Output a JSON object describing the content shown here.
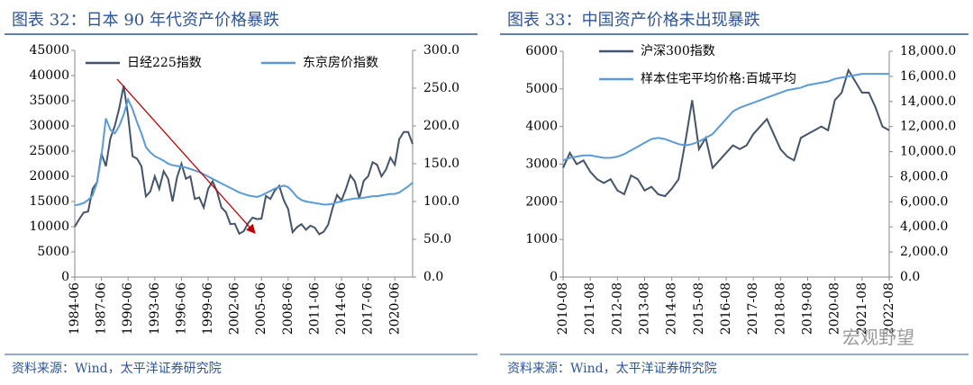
{
  "chart_data": [
    {
      "type": "line",
      "title": "图表 32：日本 90 年代资产价格暴跌",
      "source": "资料来源：Wind，太平洋证券研究院",
      "categories": [
        "1984-06",
        null,
        null,
        null,
        null,
        null,
        "1987-06",
        null,
        null,
        null,
        null,
        null,
        "1990-06",
        null,
        null,
        null,
        null,
        null,
        "1993-06",
        null,
        null,
        null,
        null,
        null,
        "1996-06",
        null,
        null,
        null,
        null,
        null,
        "1999-06",
        null,
        null,
        null,
        null,
        null,
        "2002-06",
        null,
        null,
        null,
        null,
        null,
        "2005-06",
        null,
        null,
        null,
        null,
        null,
        "2008-06",
        null,
        null,
        null,
        null,
        null,
        "2011-06",
        null,
        null,
        null,
        null,
        null,
        "2014-06",
        null,
        null,
        null,
        null,
        null,
        "2017-06",
        null,
        null,
        null,
        null,
        null,
        "2020-06",
        null,
        null,
        null,
        null
      ],
      "series": [
        {
          "name": "日经225指数",
          "color": "#44546a",
          "axis": "y",
          "values": [
            10000,
            11500,
            12800,
            13000,
            17500,
            18800,
            24500,
            22000,
            27500,
            30000,
            33500,
            38000,
            32000,
            24000,
            23500,
            22000,
            16000,
            17000,
            20000,
            17500,
            21000,
            19500,
            15000,
            19800,
            22500,
            19500,
            20000,
            15500,
            15800,
            13800,
            17500,
            19000,
            17000,
            13800,
            12900,
            10500,
            10600,
            8600,
            9100,
            10700,
            11800,
            11500,
            11600,
            16100,
            15500,
            17200,
            18100,
            15300,
            13500,
            8900,
            9900,
            10500,
            9400,
            10200,
            9800,
            8500,
            9000,
            10400,
            13700,
            16300,
            15200,
            17500,
            20200,
            19000,
            15600,
            19100,
            20000,
            22800,
            22300,
            20000,
            21300,
            23700,
            22300,
            27400,
            28800,
            28800,
            26400
          ]
        },
        {
          "name": "东京房价指数",
          "color": "#5b9bd5",
          "axis": "y2",
          "values": [
            95,
            96,
            98,
            102,
            108,
            125,
            160,
            210,
            195,
            190,
            200,
            215,
            235,
            222,
            205,
            190,
            172,
            165,
            160,
            157,
            154,
            150,
            148,
            147,
            146,
            145,
            143,
            141,
            139,
            136,
            133,
            130,
            127,
            124,
            121,
            118,
            115,
            112,
            110,
            108,
            107,
            106,
            108,
            111,
            114,
            117,
            119,
            121,
            119,
            113,
            106,
            102,
            100,
            99,
            98,
            97,
            96,
            96,
            97,
            99,
            100,
            102,
            103,
            104,
            104,
            105,
            106,
            107,
            107,
            108,
            109,
            110,
            110,
            112,
            116,
            120,
            125
          ]
        }
      ],
      "ylim": [
        0,
        45000
      ],
      "yticks": [
        0,
        5000,
        10000,
        15000,
        20000,
        25000,
        30000,
        35000,
        40000,
        45000
      ],
      "y2lim": [
        0,
        300
      ],
      "y2ticks": [
        {
          "value": 0,
          "label": "0.0"
        },
        {
          "value": 50,
          "label": "50.0"
        },
        {
          "value": 100,
          "label": "100.0"
        },
        {
          "value": 150,
          "label": "150.0"
        },
        {
          "value": 200,
          "label": "200.0"
        },
        {
          "value": 250,
          "label": "250.0"
        },
        {
          "value": 300,
          "label": "300.0"
        }
      ],
      "legend": "upper left"
    },
    {
      "type": "line",
      "title": "图表 33：中国资产价格未出现暴跌",
      "source": "资料来源：Wind，太平洋证券研究院",
      "categories": [
        "2010-08",
        null,
        null,
        null,
        "2011-08",
        null,
        null,
        null,
        "2012-08",
        null,
        null,
        null,
        "2013-08",
        null,
        null,
        null,
        "2014-08",
        null,
        null,
        null,
        "2015-08",
        null,
        null,
        null,
        "2016-08",
        null,
        null,
        null,
        "2017-08",
        null,
        null,
        null,
        "2018-08",
        null,
        null,
        null,
        "2019-08",
        null,
        null,
        null,
        "2020-08",
        null,
        null,
        null,
        "2021-08",
        null,
        null,
        null,
        "2022-08"
      ],
      "series": [
        {
          "name": "沪深300指数",
          "color": "#44546a",
          "axis": "y",
          "values": [
            2900,
            3300,
            3000,
            3100,
            2800,
            2600,
            2500,
            2600,
            2300,
            2200,
            2700,
            2600,
            2300,
            2400,
            2200,
            2150,
            2350,
            2600,
            3600,
            4700,
            3400,
            3700,
            2900,
            3100,
            3300,
            3500,
            3400,
            3500,
            3800,
            4000,
            4200,
            3800,
            3400,
            3200,
            3100,
            3700,
            3800,
            3900,
            4000,
            3900,
            4700,
            4900,
            5500,
            5200,
            4900,
            4900,
            4500,
            4000,
            3900
          ]
        },
        {
          "name": "样本住宅平均价格:百城平均",
          "color": "#5b9bd5",
          "axis": "y2",
          "values": [
            9300,
            9500,
            9600,
            9700,
            9700,
            9600,
            9500,
            9500,
            9600,
            9800,
            10100,
            10400,
            10700,
            11000,
            11100,
            11000,
            10800,
            10600,
            10500,
            10600,
            10800,
            11100,
            11400,
            12000,
            12600,
            13200,
            13500,
            13700,
            13900,
            14100,
            14300,
            14500,
            14700,
            14900,
            15000,
            15100,
            15300,
            15400,
            15500,
            15600,
            15800,
            15900,
            16000,
            16100,
            16200,
            16200,
            16200,
            16200,
            16200
          ]
        }
      ],
      "ylim": [
        0,
        6000
      ],
      "yticks": [
        0,
        1000,
        2000,
        3000,
        4000,
        5000,
        6000
      ],
      "y2lim": [
        0,
        18000
      ],
      "y2ticks": [
        {
          "value": 0,
          "label": "0.0"
        },
        {
          "value": 2000,
          "label": "2,000.0"
        },
        {
          "value": 4000,
          "label": "4,000.0"
        },
        {
          "value": 6000,
          "label": "6,000.0"
        },
        {
          "value": 8000,
          "label": "8,000.0"
        },
        {
          "value": 10000,
          "label": "10,000.0"
        },
        {
          "value": 12000,
          "label": "12,000.0"
        },
        {
          "value": 14000,
          "label": "14,000.0"
        },
        {
          "value": 16000,
          "label": "16,000.0"
        },
        {
          "value": 18000,
          "label": "18,000.0"
        }
      ],
      "legend": "upper left"
    }
  ],
  "watermark": "宏观野望"
}
